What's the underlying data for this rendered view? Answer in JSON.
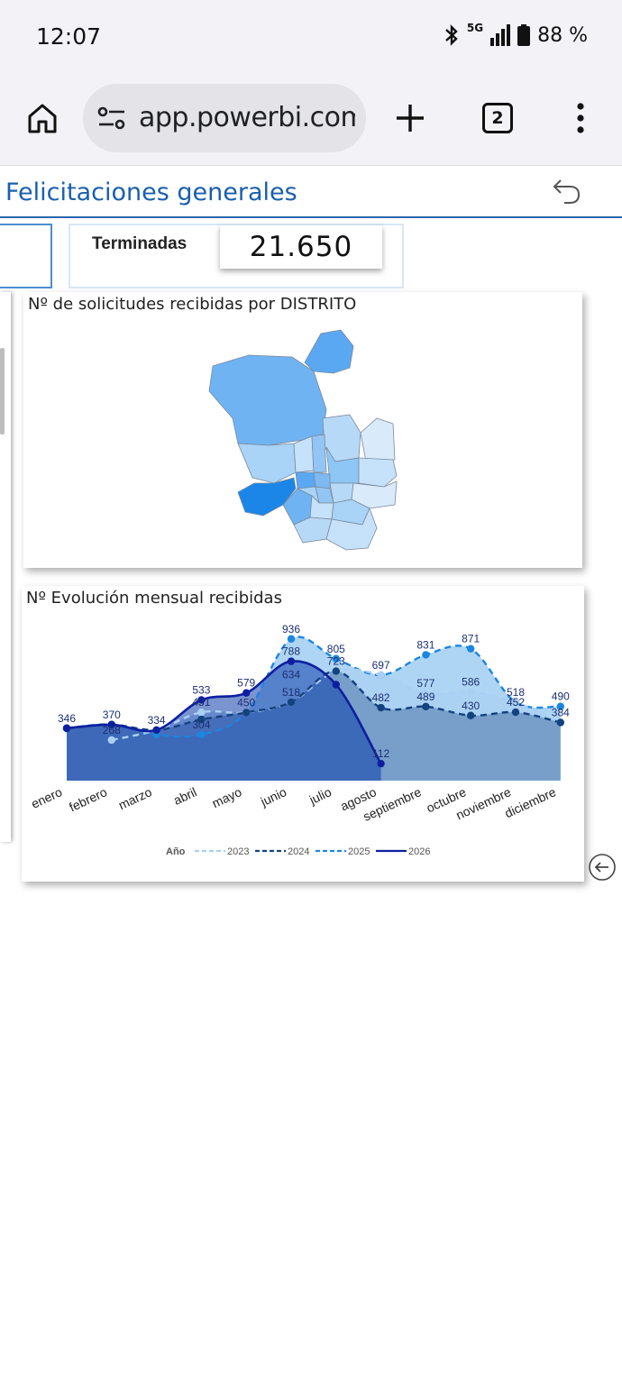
{
  "status_bar": {
    "time": "12:07",
    "network": "5G",
    "battery": "88 %"
  },
  "browser": {
    "url": "app.powerbi.com",
    "tab_count": "2"
  },
  "report": {
    "title": "Felicitaciones generales",
    "kpi": {
      "label": "Terminadas",
      "value": "21.650"
    },
    "map_title": "Nº de solicitudes recibidas por DISTRITO",
    "line_title": "Nº Evolución mensual recibidas"
  },
  "colors": {
    "accent": "#1a5fae",
    "y2023": "#a9d0f2",
    "y2024": "#14427f",
    "y2025": "#1b86e0",
    "y2026": "#0d1fa0"
  },
  "chart_data": {
    "type": "line",
    "title": "Nº Evolución mensual recibidas",
    "categories": [
      "enero",
      "febrero",
      "marzo",
      "abril",
      "mayo",
      "junio",
      "julio",
      "agosto",
      "septiembre",
      "octubre",
      "noviembre",
      "diciembre"
    ],
    "legend_title": "Año",
    "legend_position": "bottom",
    "series": [
      {
        "name": "2023",
        "values": [
          null,
          268,
          334,
          451,
          450,
          518,
          723,
          697,
          577,
          586,
          518,
          384
        ]
      },
      {
        "name": "2024",
        "values": [
          346,
          370,
          334,
          404,
          450,
          518,
          723,
          482,
          489,
          430,
          452,
          384
        ]
      },
      {
        "name": "2025",
        "values": [
          346,
          370,
          304,
          304,
          450,
          936,
          805,
          697,
          831,
          871,
          518,
          490
        ]
      },
      {
        "name": "2026",
        "values": [
          346,
          370,
          334,
          533,
          579,
          788,
          634,
          112,
          null,
          null,
          null,
          null
        ]
      }
    ],
    "data_labels": [
      {
        "text": "346",
        "month": 0,
        "value": 346
      },
      {
        "text": "370",
        "month": 1,
        "value": 370
      },
      {
        "text": "268",
        "month": 1,
        "value": 268
      },
      {
        "text": "334",
        "month": 2,
        "value": 334
      },
      {
        "text": "533",
        "month": 3,
        "value": 533
      },
      {
        "text": "451",
        "month": 3,
        "value": 451
      },
      {
        "text": "304",
        "month": 3,
        "value": 304
      },
      {
        "text": "579",
        "month": 4,
        "value": 579
      },
      {
        "text": "450",
        "month": 4,
        "value": 450
      },
      {
        "text": "936",
        "month": 5,
        "value": 936
      },
      {
        "text": "788",
        "month": 5,
        "value": 788
      },
      {
        "text": "634",
        "month": 5,
        "value": 634
      },
      {
        "text": "518",
        "month": 5,
        "value": 518
      },
      {
        "text": "805",
        "month": 6,
        "value": 805
      },
      {
        "text": "723",
        "month": 6,
        "value": 723
      },
      {
        "text": "697",
        "month": 7,
        "value": 697
      },
      {
        "text": "482",
        "month": 7,
        "value": 482
      },
      {
        "text": "112",
        "month": 7,
        "value": 112
      },
      {
        "text": "831",
        "month": 8,
        "value": 831
      },
      {
        "text": "577",
        "month": 8,
        "value": 577
      },
      {
        "text": "489",
        "month": 8,
        "value": 489
      },
      {
        "text": "871",
        "month": 9,
        "value": 871
      },
      {
        "text": "586",
        "month": 9,
        "value": 586
      },
      {
        "text": "430",
        "month": 9,
        "value": 430
      },
      {
        "text": "518",
        "month": 10,
        "value": 518
      },
      {
        "text": "452",
        "month": 10,
        "value": 452
      },
      {
        "text": "490",
        "month": 11,
        "value": 490
      },
      {
        "text": "384",
        "month": 11,
        "value": 384
      }
    ],
    "ylim": [
      0,
      1000
    ]
  },
  "map": {
    "districts_shading": [
      "#5aa8f2",
      "#6fb3f3",
      "#1b86e8",
      "#8ec6f6",
      "#a9d3f7",
      "#c6e1fa",
      "#d9ebfb",
      "#b7d9f8",
      "#93c5f4",
      "#7fb9f2"
    ]
  }
}
